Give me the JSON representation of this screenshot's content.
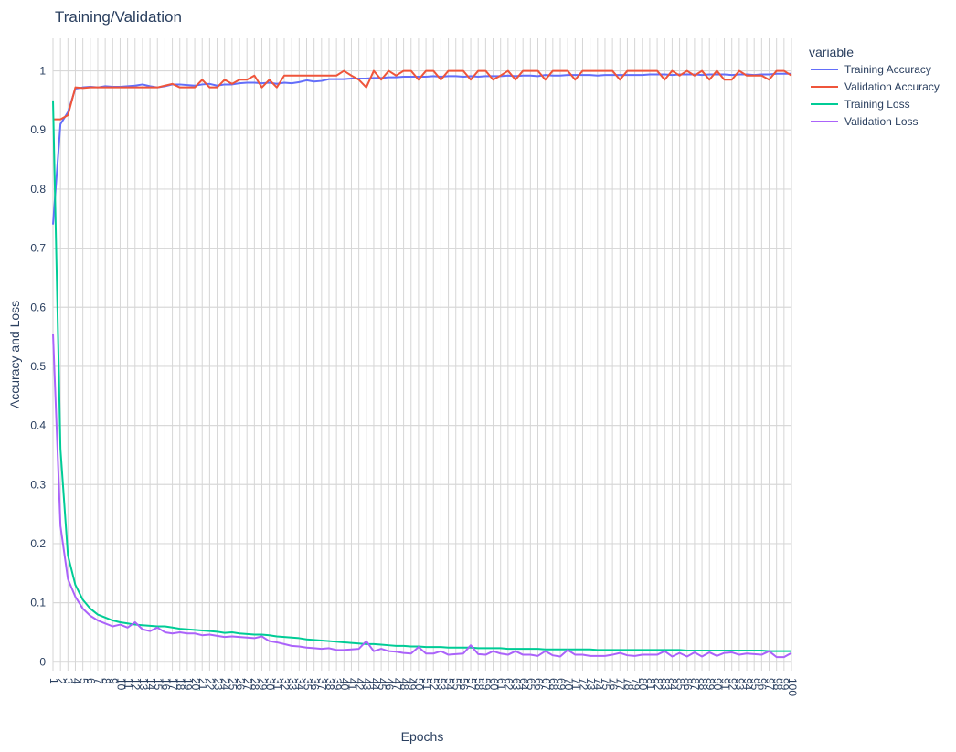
{
  "chart_data": {
    "type": "line",
    "title": "Training/Validation",
    "xlabel": "Epochs",
    "ylabel": "Accuracy and Loss",
    "legend_title": "variable",
    "legend_position": "top-right",
    "grid": true,
    "x_range": [
      1,
      100
    ],
    "y_range": [
      -0.015,
      1.055
    ],
    "y_ticks": [
      0,
      0.1,
      0.2,
      0.3,
      0.4,
      0.5,
      0.6,
      0.7,
      0.8,
      0.9,
      1
    ],
    "y_tick_labels": [
      "0",
      "0.1",
      "0.2",
      "0.3",
      "0.4",
      "0.5",
      "0.6",
      "0.7",
      "0.8",
      "0.9",
      "1"
    ],
    "x": [
      1,
      2,
      3,
      4,
      5,
      6,
      7,
      8,
      9,
      10,
      11,
      12,
      13,
      14,
      15,
      16,
      17,
      18,
      19,
      20,
      21,
      22,
      23,
      24,
      25,
      26,
      27,
      28,
      29,
      30,
      31,
      32,
      33,
      34,
      35,
      36,
      37,
      38,
      39,
      40,
      41,
      42,
      43,
      44,
      45,
      46,
      47,
      48,
      49,
      50,
      51,
      52,
      53,
      54,
      55,
      56,
      57,
      58,
      59,
      60,
      61,
      62,
      63,
      64,
      65,
      66,
      67,
      68,
      69,
      70,
      71,
      72,
      73,
      74,
      75,
      76,
      77,
      78,
      79,
      80,
      81,
      82,
      83,
      84,
      85,
      86,
      87,
      88,
      89,
      90,
      91,
      92,
      93,
      94,
      95,
      96,
      97,
      98,
      99,
      100
    ],
    "x_tick_labels": [
      "1",
      "2",
      "3",
      "4",
      "5",
      "6",
      "7",
      "8",
      "9",
      "10",
      "11",
      "12",
      "13",
      "14",
      "15",
      "16",
      "17",
      "18",
      "19",
      "20",
      "21",
      "22",
      "23",
      "24",
      "25",
      "26",
      "27",
      "28",
      "29",
      "30",
      "31",
      "32",
      "33",
      "34",
      "35",
      "36",
      "37",
      "38",
      "39",
      "40",
      "41",
      "42",
      "43",
      "44",
      "45",
      "46",
      "47",
      "48",
      "49",
      "50",
      "51",
      "52",
      "53",
      "54",
      "55",
      "56",
      "57",
      "58",
      "59",
      "60",
      "61",
      "62",
      "63",
      "64",
      "65",
      "66",
      "67",
      "68",
      "69",
      "70",
      "71",
      "72",
      "73",
      "74",
      "75",
      "76",
      "77",
      "78",
      "79",
      "80",
      "81",
      "82",
      "83",
      "84",
      "85",
      "86",
      "87",
      "88",
      "89",
      "90",
      "91",
      "92",
      "93",
      "94",
      "95",
      "96",
      "97",
      "98",
      "99",
      "100"
    ],
    "series": [
      {
        "name": "Training Accuracy",
        "color": "#636efa",
        "values": [
          0.74,
          0.91,
          0.93,
          0.97,
          0.972,
          0.973,
          0.972,
          0.974,
          0.973,
          0.973,
          0.974,
          0.975,
          0.977,
          0.974,
          0.972,
          0.974,
          0.977,
          0.977,
          0.976,
          0.975,
          0.977,
          0.978,
          0.975,
          0.977,
          0.977,
          0.979,
          0.98,
          0.98,
          0.979,
          0.98,
          0.978,
          0.98,
          0.979,
          0.981,
          0.984,
          0.982,
          0.983,
          0.986,
          0.986,
          0.986,
          0.987,
          0.987,
          0.987,
          0.988,
          0.988,
          0.989,
          0.989,
          0.99,
          0.99,
          0.99,
          0.99,
          0.991,
          0.99,
          0.991,
          0.991,
          0.99,
          0.991,
          0.99,
          0.991,
          0.991,
          0.991,
          0.992,
          0.991,
          0.992,
          0.992,
          0.991,
          0.993,
          0.992,
          0.992,
          0.993,
          0.993,
          0.993,
          0.993,
          0.992,
          0.993,
          0.993,
          0.993,
          0.993,
          0.993,
          0.993,
          0.994,
          0.994,
          0.994,
          0.993,
          0.994,
          0.994,
          0.994,
          0.993,
          0.994,
          0.994,
          0.994,
          0.993,
          0.994,
          0.994,
          0.993,
          0.994,
          0.994,
          0.995,
          0.995,
          0.995
        ]
      },
      {
        "name": "Validation Accuracy",
        "color": "#ef553b",
        "values": [
          0.918,
          0.918,
          0.925,
          0.972,
          0.971,
          0.972,
          0.972,
          0.972,
          0.972,
          0.972,
          0.972,
          0.972,
          0.972,
          0.972,
          0.972,
          0.975,
          0.978,
          0.972,
          0.972,
          0.972,
          0.985,
          0.972,
          0.972,
          0.985,
          0.978,
          0.985,
          0.985,
          0.992,
          0.972,
          0.985,
          0.972,
          0.992,
          0.992,
          0.992,
          0.992,
          0.992,
          0.992,
          0.992,
          0.992,
          1.0,
          0.992,
          0.985,
          0.972,
          1.0,
          0.985,
          1.0,
          0.992,
          1.0,
          1.0,
          0.985,
          1.0,
          1.0,
          0.985,
          1.0,
          1.0,
          1.0,
          0.985,
          1.0,
          1.0,
          0.985,
          0.992,
          1.0,
          0.985,
          1.0,
          1.0,
          1.0,
          0.985,
          1.0,
          1.0,
          1.0,
          0.985,
          1.0,
          1.0,
          1.0,
          1.0,
          1.0,
          0.985,
          1.0,
          1.0,
          1.0,
          1.0,
          1.0,
          0.985,
          1.0,
          0.992,
          1.0,
          0.992,
          1.0,
          0.985,
          1.0,
          0.985,
          0.985,
          1.0,
          0.992,
          0.992,
          0.992,
          0.985,
          1.0,
          1.0,
          0.992
        ]
      },
      {
        "name": "Training Loss",
        "color": "#00cc96",
        "values": [
          0.95,
          0.36,
          0.18,
          0.13,
          0.105,
          0.09,
          0.08,
          0.075,
          0.07,
          0.067,
          0.065,
          0.063,
          0.062,
          0.061,
          0.06,
          0.06,
          0.058,
          0.056,
          0.055,
          0.054,
          0.053,
          0.052,
          0.051,
          0.049,
          0.05,
          0.048,
          0.047,
          0.046,
          0.046,
          0.045,
          0.043,
          0.042,
          0.041,
          0.04,
          0.038,
          0.037,
          0.036,
          0.035,
          0.034,
          0.033,
          0.032,
          0.031,
          0.03,
          0.03,
          0.029,
          0.028,
          0.027,
          0.027,
          0.026,
          0.026,
          0.025,
          0.025,
          0.025,
          0.024,
          0.024,
          0.024,
          0.024,
          0.023,
          0.023,
          0.023,
          0.023,
          0.022,
          0.022,
          0.022,
          0.022,
          0.022,
          0.021,
          0.021,
          0.021,
          0.021,
          0.021,
          0.021,
          0.021,
          0.02,
          0.02,
          0.02,
          0.02,
          0.02,
          0.02,
          0.02,
          0.02,
          0.02,
          0.02,
          0.02,
          0.02,
          0.019,
          0.019,
          0.019,
          0.019,
          0.019,
          0.019,
          0.019,
          0.019,
          0.019,
          0.019,
          0.019,
          0.018,
          0.018,
          0.018,
          0.018
        ]
      },
      {
        "name": "Validation Loss",
        "color": "#ab63fa",
        "values": [
          0.555,
          0.23,
          0.14,
          0.11,
          0.09,
          0.078,
          0.07,
          0.065,
          0.06,
          0.063,
          0.058,
          0.067,
          0.055,
          0.052,
          0.058,
          0.05,
          0.048,
          0.05,
          0.048,
          0.048,
          0.045,
          0.046,
          0.044,
          0.042,
          0.043,
          0.042,
          0.041,
          0.04,
          0.043,
          0.035,
          0.033,
          0.03,
          0.027,
          0.026,
          0.024,
          0.023,
          0.022,
          0.023,
          0.02,
          0.02,
          0.021,
          0.022,
          0.035,
          0.018,
          0.022,
          0.018,
          0.017,
          0.015,
          0.014,
          0.025,
          0.014,
          0.014,
          0.018,
          0.012,
          0.013,
          0.014,
          0.028,
          0.013,
          0.012,
          0.018,
          0.014,
          0.012,
          0.018,
          0.012,
          0.012,
          0.01,
          0.018,
          0.011,
          0.009,
          0.02,
          0.012,
          0.012,
          0.01,
          0.01,
          0.01,
          0.012,
          0.015,
          0.011,
          0.01,
          0.012,
          0.012,
          0.012,
          0.018,
          0.009,
          0.015,
          0.009,
          0.016,
          0.009,
          0.016,
          0.01,
          0.015,
          0.016,
          0.012,
          0.014,
          0.013,
          0.012,
          0.018,
          0.008,
          0.008,
          0.015
        ]
      }
    ]
  }
}
